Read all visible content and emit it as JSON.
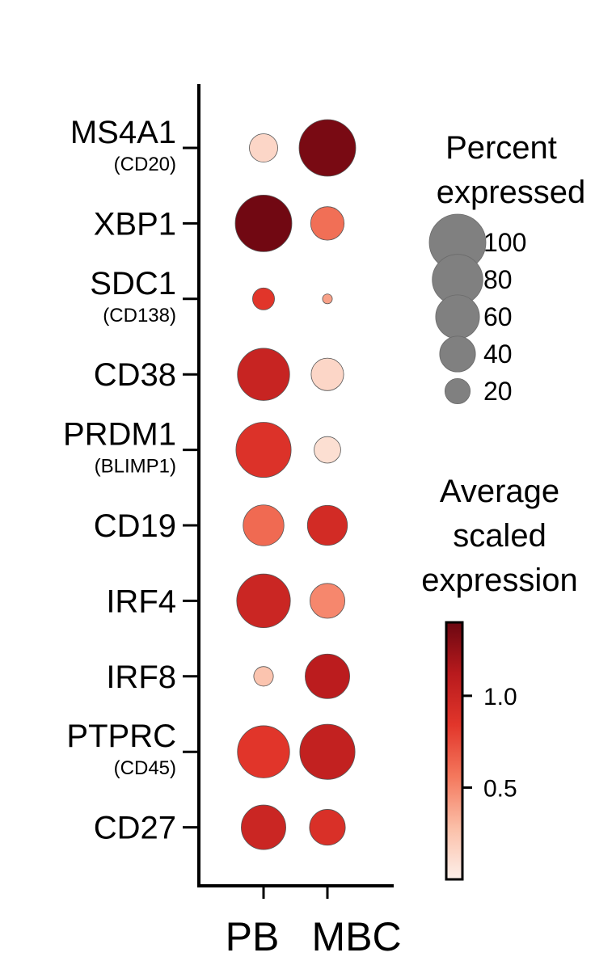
{
  "chart_data": {
    "type": "dotplot",
    "categories": [
      "PB",
      "MBC"
    ],
    "genes": [
      {
        "label": "MS4A1",
        "sublabel": "(CD20)",
        "pct": [
          25,
          100
        ],
        "avg": [
          0.15,
          1.35
        ]
      },
      {
        "label": "XBP1",
        "sublabel": "",
        "pct": [
          100,
          35
        ],
        "avg": [
          1.38,
          0.6
        ]
      },
      {
        "label": "SDC1",
        "sublabel": "(CD138)",
        "pct": [
          15,
          3
        ],
        "avg": [
          0.85,
          0.4
        ]
      },
      {
        "label": "CD38",
        "sublabel": "",
        "pct": [
          85,
          33
        ],
        "avg": [
          1.02,
          0.15
        ]
      },
      {
        "label": "PRDM1",
        "sublabel": "(BLIMP1)",
        "pct": [
          95,
          22
        ],
        "avg": [
          0.88,
          0.1
        ]
      },
      {
        "label": "CD19",
        "sublabel": "",
        "pct": [
          52,
          50
        ],
        "avg": [
          0.62,
          0.95
        ]
      },
      {
        "label": "IRF4",
        "sublabel": "",
        "pct": [
          90,
          38
        ],
        "avg": [
          1.0,
          0.5
        ]
      },
      {
        "label": "IRF8",
        "sublabel": "",
        "pct": [
          12,
          62
        ],
        "avg": [
          0.25,
          1.1
        ]
      },
      {
        "label": "PTPRC",
        "sublabel": "(CD45)",
        "pct": [
          85,
          95
        ],
        "avg": [
          0.85,
          1.05
        ]
      },
      {
        "label": "CD27",
        "sublabel": "",
        "pct": [
          62,
          40
        ],
        "avg": [
          1.0,
          0.9
        ]
      }
    ],
    "size_legend": {
      "title_lines": [
        "Percent",
        "expressed"
      ],
      "values": [
        100,
        80,
        60,
        40,
        20
      ]
    },
    "color_legend": {
      "title_lines": [
        "Average",
        "scaled",
        "expression"
      ],
      "ticks": [
        {
          "value": 1.0,
          "label": "1.0"
        },
        {
          "value": 0.5,
          "label": "0.5"
        }
      ],
      "range": [
        0,
        1.4
      ],
      "colors": [
        "#fdf0ea",
        "#fbbfa8",
        "#f4785d",
        "#e2362b",
        "#b81a1d",
        "#6b0711"
      ]
    }
  }
}
